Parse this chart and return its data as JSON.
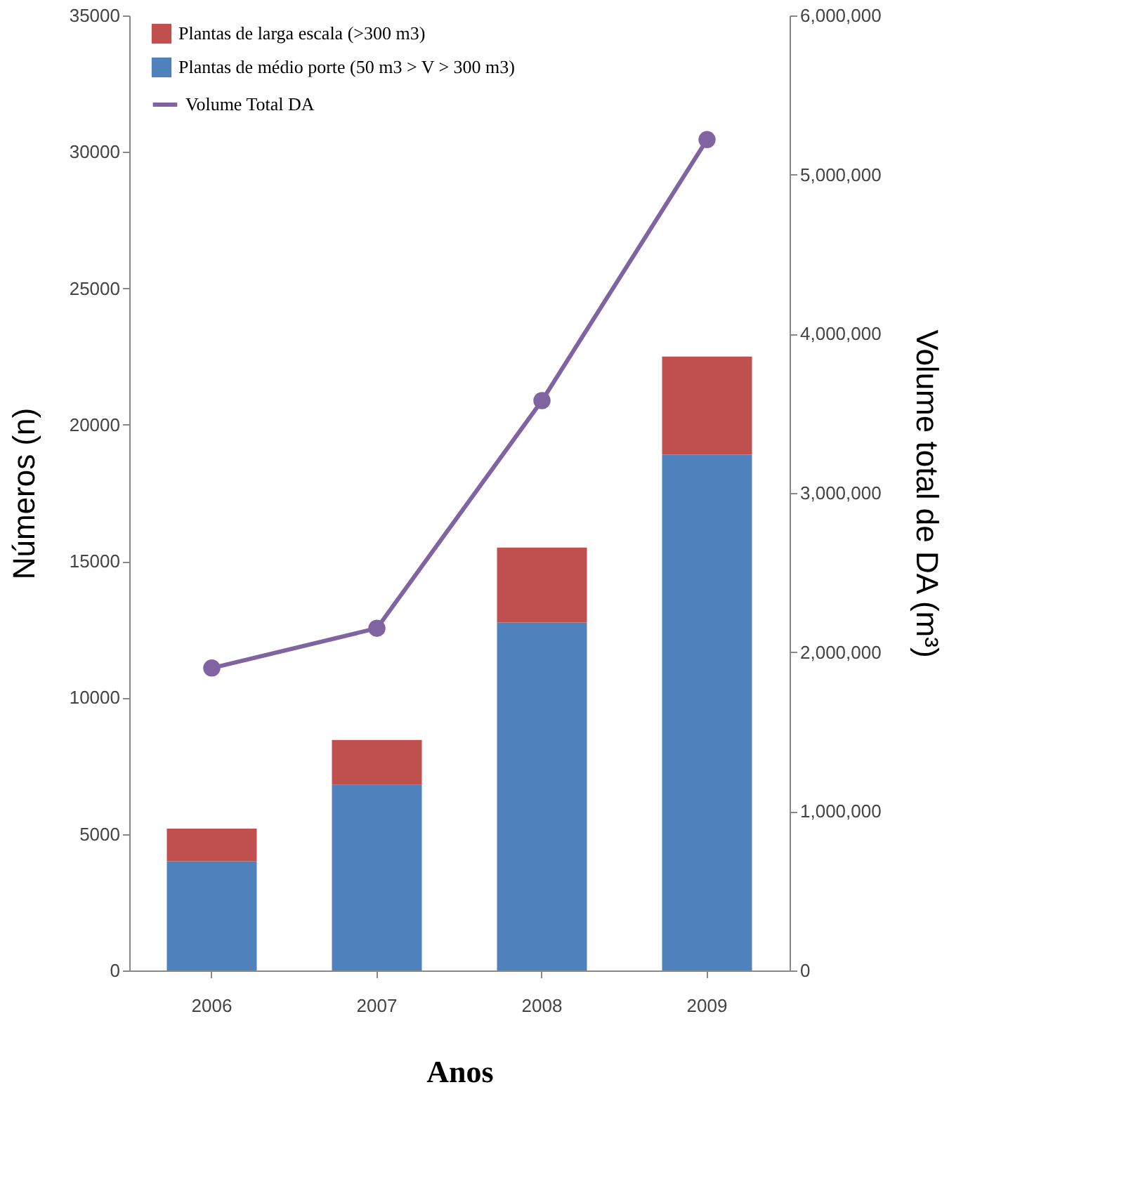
{
  "chart_data": {
    "type": "bar",
    "stacked": true,
    "xlabel": "Anos",
    "ylabel": "Números  (n)",
    "y2label": "Volume total de DA  (m³)",
    "categories": [
      "2006",
      "2007",
      "2008",
      "2009"
    ],
    "series": [
      {
        "name": "Plantas de médio porte (50 m3 > V > 300 m3)",
        "color": "#4f81bd",
        "values": [
          4000,
          6800,
          12750,
          18900
        ]
      },
      {
        "name": "Plantas de larga escala (>300 m3)",
        "color": "#c0504d",
        "values": [
          1200,
          1650,
          2750,
          3600
        ]
      },
      {
        "name": "Volume Total DA",
        "type": "line",
        "axis": "y2",
        "color": "#8064a2",
        "marker": "circle",
        "values": [
          1900000,
          2150000,
          3580000,
          5220000
        ]
      }
    ],
    "ylim": [
      0,
      35000
    ],
    "yticks": [
      0,
      5000,
      10000,
      15000,
      20000,
      25000,
      30000,
      35000
    ],
    "y2lim": [
      0,
      6000000
    ],
    "y2ticks": [
      {
        "value": 0,
        "label": "0"
      },
      {
        "value": 1000000,
        "label": "1,000,000"
      },
      {
        "value": 2000000,
        "label": "2,000,000"
      },
      {
        "value": 3000000,
        "label": "3,000,000"
      },
      {
        "value": 4000000,
        "label": "4,000,000"
      },
      {
        "value": 5000000,
        "label": "5,000,000"
      },
      {
        "value": 6000000,
        "label": "6,000,000"
      }
    ],
    "grid": false,
    "legend": "top left"
  }
}
